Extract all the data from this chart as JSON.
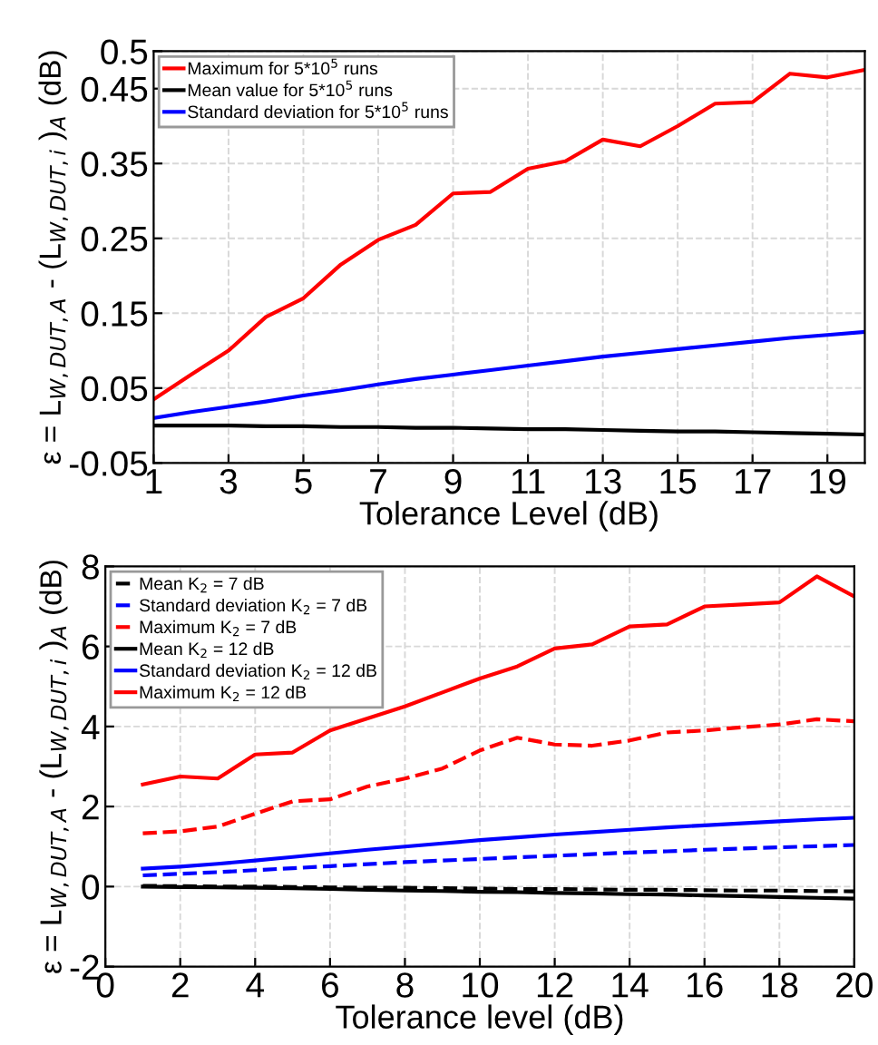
{
  "chart_data": [
    {
      "type": "line",
      "xlabel": "Tolerance Level (dB)",
      "ylabel": "ε = L$_{W,DUT,A}$ - (L$_{W,DUT,i}$ )$_{A}$ (dB)",
      "x": [
        1,
        2,
        3,
        4,
        5,
        6,
        7,
        8,
        9,
        10,
        11,
        12,
        13,
        14,
        15,
        16,
        17,
        18,
        19,
        20
      ],
      "series": [
        {
          "name": "Maximum for 5*10$^{5}$ runs",
          "color": "#ff0000",
          "line_style": "solid",
          "values": [
            0.035,
            0.068,
            0.1,
            0.145,
            0.17,
            0.215,
            0.248,
            0.268,
            0.31,
            0.312,
            0.343,
            0.353,
            0.382,
            0.373,
            0.4,
            0.43,
            0.432,
            0.47,
            0.465,
            0.475
          ]
        },
        {
          "name": "Mean value for 5*10$^{5}$ runs",
          "color": "#000000",
          "line_style": "solid",
          "values": [
            0.0,
            0.0,
            0.0,
            -0.001,
            -0.001,
            -0.002,
            -0.002,
            -0.003,
            -0.003,
            -0.004,
            -0.005,
            -0.005,
            -0.006,
            -0.007,
            -0.008,
            -0.008,
            -0.009,
            -0.01,
            -0.011,
            -0.012
          ]
        },
        {
          "name": "Standard deviation for 5*10$^{5}$ runs",
          "color": "#0000ff",
          "line_style": "solid",
          "values": [
            0.01,
            0.018,
            0.025,
            0.032,
            0.04,
            0.047,
            0.055,
            0.062,
            0.068,
            0.074,
            0.08,
            0.086,
            0.092,
            0.097,
            0.102,
            0.107,
            0.112,
            0.117,
            0.121,
            0.125
          ]
        }
      ],
      "xlim": [
        1,
        20
      ],
      "xticks": [
        1,
        3,
        5,
        7,
        9,
        11,
        13,
        15,
        17,
        19
      ],
      "ylim": [
        -0.05,
        0.5
      ],
      "yticks": [
        -0.05,
        0.05,
        0.15,
        0.25,
        0.35,
        0.45,
        0.5
      ],
      "grid": true,
      "legend": "top left",
      "marker": "none"
    },
    {
      "type": "line",
      "xlabel": "Tolerance level (dB)",
      "ylabel": "ε = L$_{W,DUT,A}$ - (L$_{W,DUT,i}$ )$_{A}$ (dB)",
      "x": [
        1,
        2,
        3,
        4,
        5,
        6,
        7,
        8,
        9,
        10,
        11,
        12,
        13,
        14,
        15,
        16,
        17,
        18,
        19,
        20
      ],
      "series": [
        {
          "name": "Mean K$_{2}$ = 7 dB",
          "color": "#000000",
          "line_style": "dashed",
          "values": [
            0.02,
            0.01,
            0.0,
            0.0,
            -0.01,
            -0.02,
            -0.03,
            -0.03,
            -0.04,
            -0.05,
            -0.06,
            -0.06,
            -0.07,
            -0.08,
            -0.08,
            -0.09,
            -0.1,
            -0.1,
            -0.11,
            -0.12
          ]
        },
        {
          "name": "Standard deviation K$_{2}$ = 7 dB",
          "color": "#0000ff",
          "line_style": "dashed",
          "values": [
            0.28,
            0.32,
            0.36,
            0.41,
            0.46,
            0.51,
            0.56,
            0.61,
            0.65,
            0.69,
            0.73,
            0.77,
            0.81,
            0.85,
            0.88,
            0.92,
            0.95,
            0.98,
            1.01,
            1.04
          ]
        },
        {
          "name": "Maximum K$_{2}$ = 7 dB",
          "color": "#ff0000",
          "line_style": "dashed",
          "values": [
            1.33,
            1.38,
            1.5,
            1.82,
            2.13,
            2.18,
            2.5,
            2.7,
            2.95,
            3.4,
            3.72,
            3.55,
            3.52,
            3.65,
            3.85,
            3.9,
            3.98,
            4.05,
            4.18,
            4.13
          ]
        },
        {
          "name": "Mean K$_{2}$ = 12 dB",
          "color": "#000000",
          "line_style": "solid",
          "values": [
            0.0,
            -0.01,
            -0.02,
            -0.03,
            -0.04,
            -0.06,
            -0.08,
            -0.1,
            -0.11,
            -0.13,
            -0.14,
            -0.16,
            -0.17,
            -0.19,
            -0.2,
            -0.22,
            -0.24,
            -0.26,
            -0.28,
            -0.3
          ]
        },
        {
          "name": "Standard deviation K$_{2}$ = 12 dB",
          "color": "#0000ff",
          "line_style": "solid",
          "values": [
            0.45,
            0.5,
            0.57,
            0.65,
            0.74,
            0.83,
            0.92,
            1.0,
            1.08,
            1.16,
            1.23,
            1.3,
            1.36,
            1.42,
            1.48,
            1.53,
            1.58,
            1.63,
            1.68,
            1.72
          ]
        },
        {
          "name": "Maximum K$_{2}$ = 12 dB",
          "color": "#ff0000",
          "line_style": "solid",
          "values": [
            2.55,
            2.75,
            2.7,
            3.3,
            3.35,
            3.9,
            4.2,
            4.5,
            4.85,
            5.2,
            5.5,
            5.95,
            6.05,
            6.5,
            6.55,
            7.0,
            7.05,
            7.1,
            7.75,
            7.25
          ]
        }
      ],
      "xlim": [
        0,
        20
      ],
      "xticks": [
        0,
        2,
        4,
        6,
        8,
        10,
        12,
        14,
        16,
        18,
        20
      ],
      "ylim": [
        -2,
        8
      ],
      "yticks": [
        -2,
        0,
        2,
        4,
        6,
        8
      ],
      "grid": true,
      "legend": "top left",
      "marker": "none"
    }
  ]
}
